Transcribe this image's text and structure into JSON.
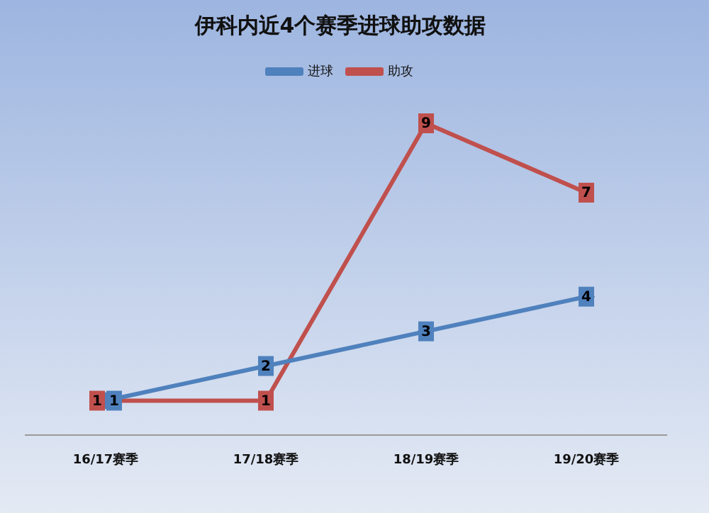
{
  "chart_data": {
    "type": "line",
    "title": "伊科内近4个赛季进球助攻数据",
    "categories": [
      "16/17赛季",
      "17/18赛季",
      "18/19赛季",
      "19/20赛季"
    ],
    "series": [
      {
        "name": "进球",
        "color": "#4f81bd",
        "values": [
          1,
          2,
          3,
          4
        ],
        "marker": "diamond"
      },
      {
        "name": "助攻",
        "color": "#c0504d",
        "values": [
          1,
          1,
          9,
          7
        ],
        "marker": "square"
      }
    ],
    "data_labels": true,
    "legend": "top",
    "grid": false
  }
}
